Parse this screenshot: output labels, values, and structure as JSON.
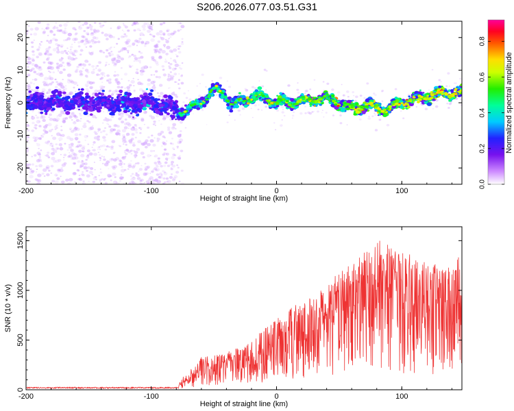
{
  "title": "S206.2026.077.03.51.G31",
  "chart_data": [
    {
      "type": "heatmap",
      "name": "spectrogram",
      "xlabel": "Height of straight line (km)",
      "ylabel": "Frequency (Hz)",
      "xlim": [
        -200,
        148
      ],
      "ylim": [
        -25,
        25
      ],
      "xticks": [
        -200,
        -100,
        0,
        100
      ],
      "yticks": [
        -20,
        -10,
        0,
        10,
        20
      ],
      "colorbar": {
        "label": "Normalized spectral amplitude",
        "range": [
          0,
          0.92
        ],
        "ticks": [
          0.0,
          0.2,
          0.4,
          0.6,
          0.8
        ]
      },
      "ridge_x": [
        -200,
        -150,
        -100,
        -82,
        -75,
        -65,
        -55,
        -48,
        -42,
        -35,
        -25,
        -15,
        -5,
        0,
        10,
        20,
        30,
        40,
        50,
        60,
        70,
        80,
        90,
        100,
        110,
        120,
        130,
        140,
        148
      ],
      "ridge_freq": [
        0,
        0,
        0,
        -2,
        -3,
        -1,
        2,
        4,
        3,
        -1,
        1,
        2,
        1,
        0,
        0,
        0.5,
        1,
        1.5,
        0,
        -2,
        -1,
        -1.5,
        -2,
        0,
        1,
        2,
        2.5,
        3,
        3
      ]
    },
    {
      "type": "line",
      "name": "snr",
      "xlabel": "Height of straight line (km)",
      "ylabel": "SNR (10 * v/v)",
      "xlim": [
        -200,
        148
      ],
      "ylim": [
        0,
        1640
      ],
      "xticks": [
        -200,
        -100,
        0,
        100
      ],
      "yticks": [
        0,
        500,
        1000,
        1500
      ],
      "series_color": "#ee3333",
      "envelope_x": [
        -200,
        -80,
        -75,
        -60,
        -50,
        -40,
        -30,
        -20,
        -10,
        0,
        10,
        20,
        30,
        40,
        50,
        60,
        70,
        80,
        90,
        100,
        110,
        120,
        130,
        140,
        148
      ],
      "envelope_snr": [
        25,
        25,
        120,
        320,
        350,
        380,
        420,
        480,
        620,
        720,
        820,
        880,
        940,
        1060,
        1200,
        1280,
        1380,
        1520,
        1450,
        1400,
        1300,
        1280,
        1250,
        1200,
        1400
      ]
    }
  ]
}
